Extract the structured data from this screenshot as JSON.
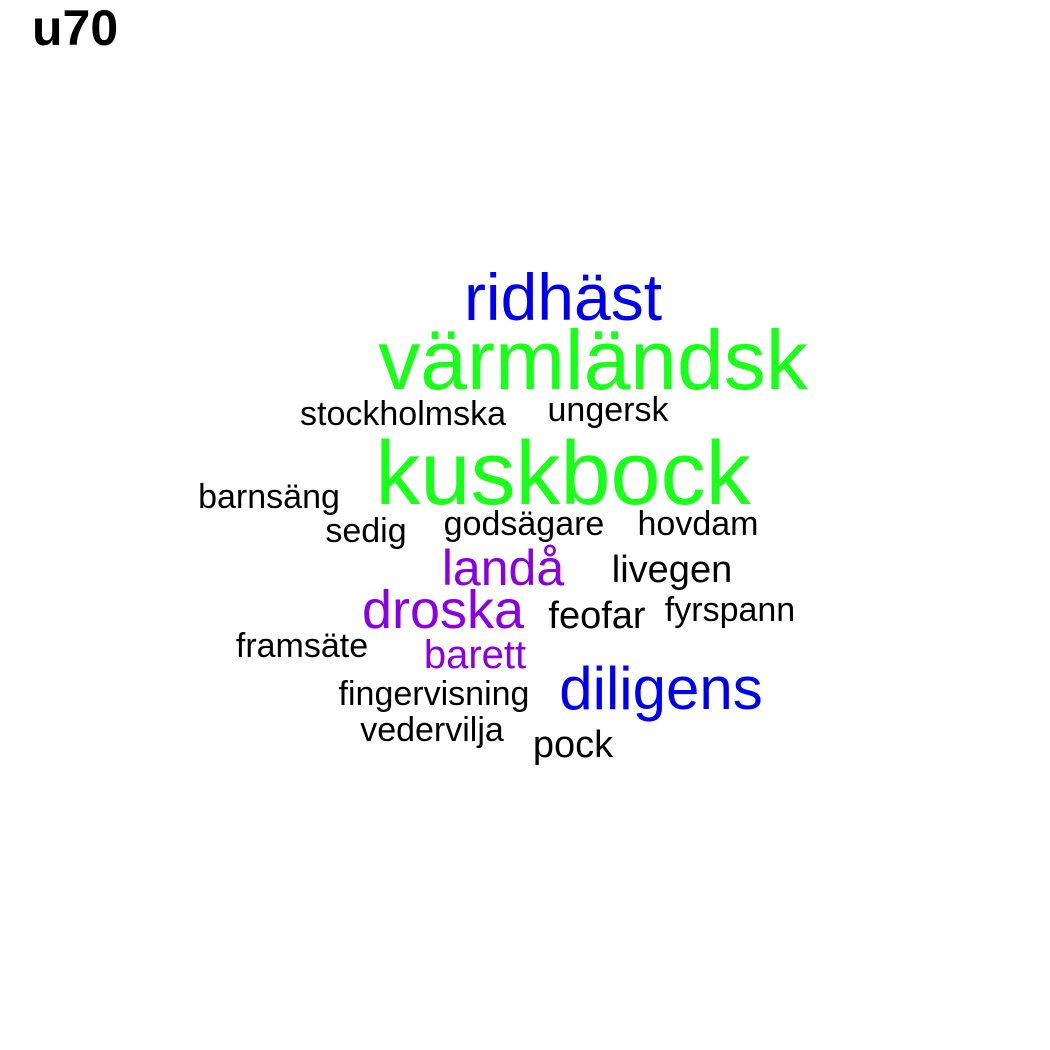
{
  "title": "u70",
  "colors": {
    "green": "#1aff1a",
    "blue": "#0000ee",
    "purple": "#8a00e6",
    "black": "#000000"
  },
  "words": [
    {
      "text": "ridhäst",
      "color": "blue"
    },
    {
      "text": "värmländsk",
      "color": "green"
    },
    {
      "text": "stockholmska",
      "color": "black"
    },
    {
      "text": "ungersk",
      "color": "black"
    },
    {
      "text": "kuskbock",
      "color": "green"
    },
    {
      "text": "barnsäng",
      "color": "black"
    },
    {
      "text": "sedig",
      "color": "black"
    },
    {
      "text": "godsägare",
      "color": "black"
    },
    {
      "text": "hovdam",
      "color": "black"
    },
    {
      "text": "landå",
      "color": "purple"
    },
    {
      "text": "livegen",
      "color": "black"
    },
    {
      "text": "droska",
      "color": "purple"
    },
    {
      "text": "feofar",
      "color": "black"
    },
    {
      "text": "fyrspann",
      "color": "black"
    },
    {
      "text": "framsäte",
      "color": "black"
    },
    {
      "text": "barett",
      "color": "purple"
    },
    {
      "text": "fingervisning",
      "color": "black"
    },
    {
      "text": "diligens",
      "color": "blue"
    },
    {
      "text": "vedervilja",
      "color": "black"
    },
    {
      "text": "pock",
      "color": "black"
    }
  ]
}
